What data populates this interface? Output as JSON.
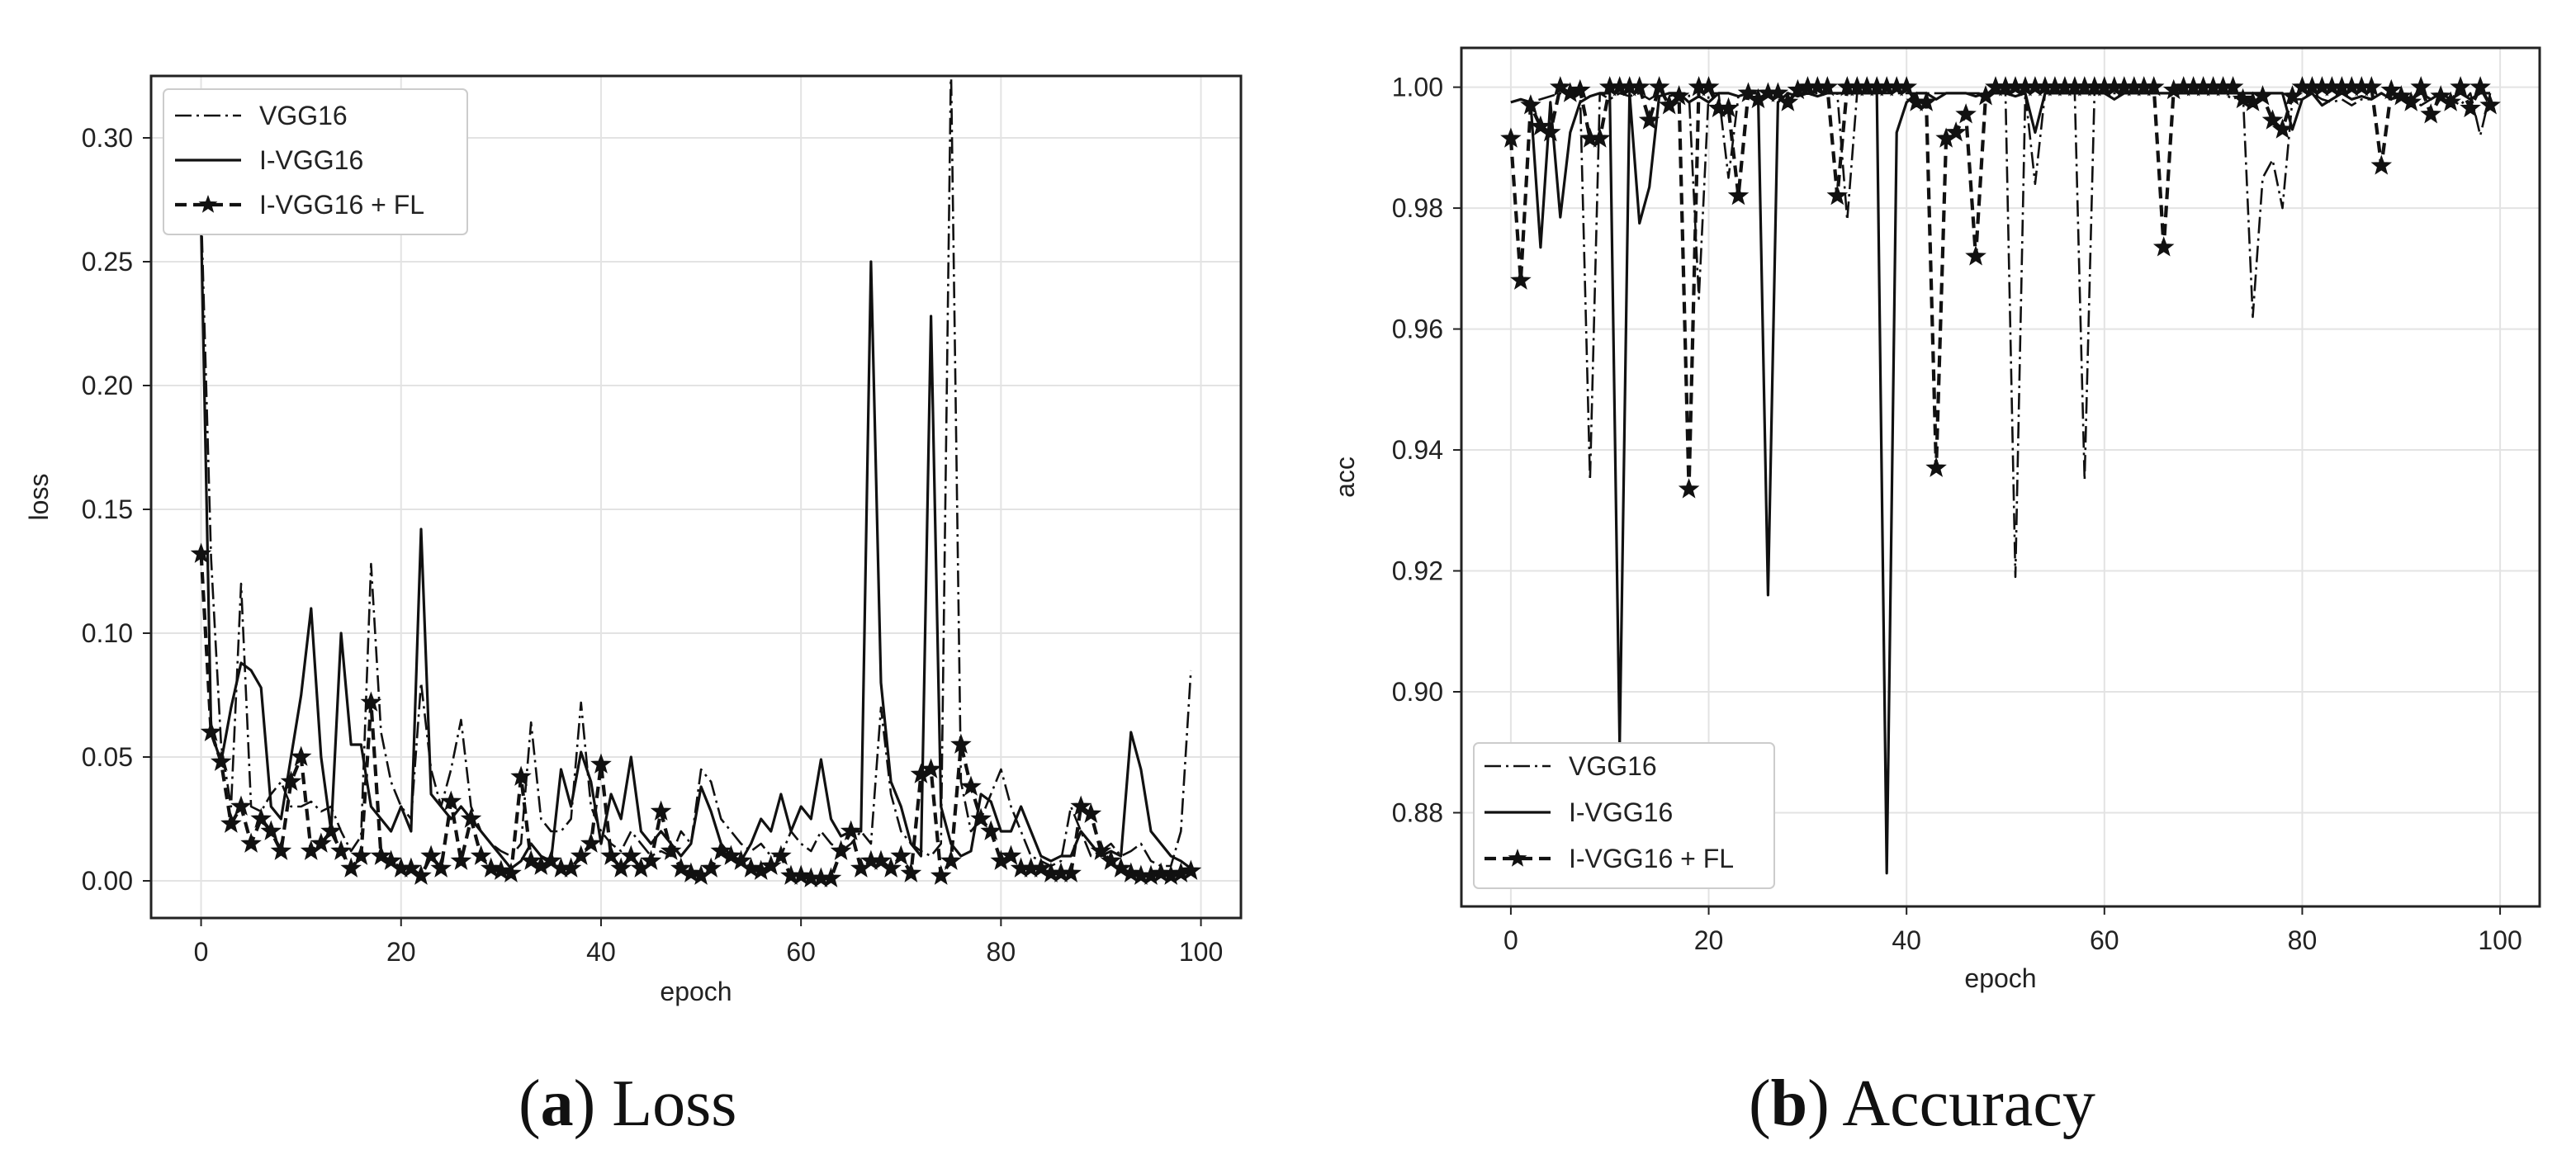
{
  "chart_data": [
    {
      "type": "line",
      "caption_letter": "a",
      "caption_text": "Loss",
      "xlabel": "epoch",
      "ylabel": "loss",
      "xlim": [
        -5,
        104
      ],
      "ylim": [
        -0.015,
        0.325
      ],
      "xticks": [
        0,
        20,
        40,
        60,
        80,
        100
      ],
      "yticks": [
        0.0,
        0.05,
        0.1,
        0.15,
        0.2,
        0.25,
        0.3
      ],
      "xtick_labels": [
        "0",
        "20",
        "40",
        "60",
        "80",
        "100"
      ],
      "ytick_labels": [
        "0.00",
        "0.05",
        "0.10",
        "0.15",
        "0.20",
        "0.25",
        "0.30"
      ],
      "grid": true,
      "legend_position": "top-left",
      "series": [
        {
          "name": "VGG16",
          "style": "dashdot",
          "values": [
            0.272,
            0.13,
            0.055,
            0.03,
            0.12,
            0.03,
            0.028,
            0.035,
            0.04,
            0.03,
            0.03,
            0.032,
            0.028,
            0.03,
            0.02,
            0.012,
            0.018,
            0.128,
            0.06,
            0.04,
            0.03,
            0.025,
            0.08,
            0.045,
            0.03,
            0.045,
            0.065,
            0.03,
            0.02,
            0.015,
            0.012,
            0.01,
            0.015,
            0.064,
            0.025,
            0.02,
            0.02,
            0.025,
            0.072,
            0.03,
            0.02,
            0.015,
            0.012,
            0.02,
            0.015,
            0.01,
            0.012,
            0.01,
            0.02,
            0.015,
            0.045,
            0.04,
            0.025,
            0.02,
            0.015,
            0.012,
            0.015,
            0.01,
            0.01,
            0.02,
            0.015,
            0.012,
            0.02,
            0.015,
            0.012,
            0.015,
            0.02,
            0.015,
            0.07,
            0.035,
            0.02,
            0.015,
            0.012,
            0.01,
            0.015,
            0.33,
            0.04,
            0.02,
            0.025,
            0.035,
            0.045,
            0.03,
            0.02,
            0.01,
            0.008,
            0.006,
            0.008,
            0.03,
            0.02,
            0.01,
            0.012,
            0.015,
            0.01,
            0.012,
            0.015,
            0.008,
            0.006,
            0.006,
            0.02,
            0.085
          ]
        },
        {
          "name": "I-VGG16",
          "style": "solid",
          "values": [
            0.265,
            0.06,
            0.048,
            0.07,
            0.088,
            0.085,
            0.078,
            0.03,
            0.025,
            0.05,
            0.075,
            0.11,
            0.05,
            0.02,
            0.1,
            0.055,
            0.055,
            0.03,
            0.025,
            0.02,
            0.03,
            0.02,
            0.142,
            0.035,
            0.03,
            0.025,
            0.03,
            0.025,
            0.02,
            0.015,
            0.01,
            0.005,
            0.008,
            0.015,
            0.01,
            0.008,
            0.045,
            0.03,
            0.052,
            0.04,
            0.015,
            0.035,
            0.025,
            0.05,
            0.02,
            0.015,
            0.02,
            0.015,
            0.01,
            0.015,
            0.038,
            0.028,
            0.015,
            0.01,
            0.008,
            0.015,
            0.025,
            0.02,
            0.035,
            0.02,
            0.03,
            0.025,
            0.049,
            0.025,
            0.018,
            0.02,
            0.02,
            0.25,
            0.08,
            0.04,
            0.03,
            0.015,
            0.01,
            0.228,
            0.03,
            0.015,
            0.01,
            0.012,
            0.035,
            0.032,
            0.02,
            0.02,
            0.03,
            0.02,
            0.01,
            0.008,
            0.01,
            0.01,
            0.02,
            0.015,
            0.01,
            0.012,
            0.01,
            0.06,
            0.045,
            0.02,
            0.015,
            0.01,
            0.008,
            0.005
          ]
        },
        {
          "name": "I-VGG16 + FL",
          "style": "dashed-star",
          "values": [
            0.132,
            0.06,
            0.048,
            0.023,
            0.03,
            0.015,
            0.025,
            0.02,
            0.012,
            0.04,
            0.05,
            0.012,
            0.015,
            0.02,
            0.012,
            0.005,
            0.01,
            0.072,
            0.01,
            0.008,
            0.005,
            0.005,
            0.002,
            0.01,
            0.005,
            0.032,
            0.008,
            0.025,
            0.01,
            0.005,
            0.004,
            0.003,
            0.042,
            0.008,
            0.006,
            0.008,
            0.005,
            0.005,
            0.01,
            0.015,
            0.047,
            0.01,
            0.005,
            0.01,
            0.005,
            0.008,
            0.028,
            0.012,
            0.005,
            0.003,
            0.002,
            0.005,
            0.012,
            0.01,
            0.008,
            0.005,
            0.004,
            0.006,
            0.01,
            0.002,
            0.002,
            0.001,
            0.001,
            0.001,
            0.012,
            0.02,
            0.005,
            0.008,
            0.008,
            0.005,
            0.01,
            0.003,
            0.043,
            0.045,
            0.002,
            0.008,
            0.055,
            0.038,
            0.025,
            0.02,
            0.008,
            0.01,
            0.005,
            0.005,
            0.005,
            0.003,
            0.003,
            0.003,
            0.03,
            0.027,
            0.012,
            0.008,
            0.005,
            0.003,
            0.002,
            0.002,
            0.003,
            0.002,
            0.003,
            0.004
          ]
        }
      ]
    },
    {
      "type": "line",
      "caption_letter": "b",
      "caption_text": "Accuracy",
      "xlabel": "epoch",
      "ylabel": "acc",
      "xlim": [
        -5,
        104
      ],
      "ylim": [
        0.8645,
        1.0065
      ],
      "xticks": [
        0,
        20,
        40,
        60,
        80,
        100
      ],
      "yticks": [
        0.88,
        0.9,
        0.92,
        0.94,
        0.96,
        0.98,
        1.0
      ],
      "xtick_labels": [
        "0",
        "20",
        "40",
        "60",
        "80",
        "100"
      ],
      "ytick_labels": [
        "0.88",
        "0.90",
        "0.92",
        "0.94",
        "0.96",
        "0.98",
        "1.00"
      ],
      "grid": true,
      "legend_position": "bottom-left",
      "series": [
        {
          "name": "VGG16",
          "style": "dashdot",
          "values": [
            0.9975,
            0.998,
            0.9975,
            0.998,
            0.9985,
            0.999,
            0.9985,
            0.999,
            0.935,
            0.999,
            0.998,
            0.999,
            0.9985,
            0.999,
            0.998,
            0.999,
            0.9985,
            0.999,
            0.999,
            0.965,
            0.999,
            0.999,
            0.985,
            0.9985,
            0.999,
            0.999,
            0.999,
            0.999,
            0.999,
            0.999,
            0.999,
            0.999,
            0.999,
            0.999,
            0.978,
            0.999,
            0.999,
            0.999,
            0.999,
            0.999,
            0.999,
            0.999,
            0.999,
            0.999,
            0.999,
            0.999,
            0.999,
            0.999,
            0.999,
            0.999,
            0.999,
            0.919,
            0.999,
            0.984,
            0.999,
            0.999,
            0.999,
            0.999,
            0.935,
            0.999,
            0.999,
            0.999,
            0.999,
            0.999,
            0.999,
            0.999,
            0.999,
            0.999,
            0.999,
            0.999,
            0.999,
            0.999,
            0.999,
            0.998,
            0.999,
            0.962,
            0.985,
            0.988,
            0.98,
            0.998,
            0.998,
            0.999,
            0.998,
            0.9975,
            0.998,
            0.997,
            0.998,
            0.998,
            0.999,
            0.998,
            0.9985,
            0.998,
            0.997,
            0.998,
            0.999,
            0.998,
            0.997,
            0.999,
            0.992,
            0.999
          ]
        },
        {
          "name": "I-VGG16",
          "style": "solid",
          "values": [
            0.9975,
            0.998,
            0.9975,
            0.9735,
            0.9975,
            0.9785,
            0.9925,
            0.9975,
            0.9985,
            0.999,
            0.999,
            0.891,
            0.999,
            0.9775,
            0.9835,
            0.9985,
            0.999,
            0.999,
            0.9975,
            0.9985,
            0.9975,
            0.999,
            0.999,
            0.9985,
            0.999,
            0.999,
            0.916,
            0.9975,
            0.999,
            0.9985,
            0.999,
            0.9985,
            0.999,
            0.999,
            0.999,
            0.999,
            0.999,
            0.999,
            0.87,
            0.9925,
            0.9975,
            0.999,
            0.999,
            0.998,
            0.999,
            0.999,
            0.999,
            0.9985,
            0.999,
            0.999,
            0.999,
            0.9985,
            0.999,
            0.9925,
            0.999,
            0.999,
            0.999,
            0.999,
            0.999,
            0.999,
            0.999,
            0.998,
            0.999,
            0.999,
            0.999,
            0.999,
            0.999,
            0.999,
            0.999,
            0.999,
            0.999,
            0.999,
            0.999,
            0.999,
            0.999,
            0.999,
            0.999,
            0.999,
            0.999,
            0.993,
            0.998,
            0.999,
            0.997,
            0.998,
            0.999,
            0.998,
            0.9985,
            0.998,
            0.999,
            0.998,
            0.999,
            0.998,
            0.999,
            0.998,
            0.999,
            0.998,
            0.999,
            0.998,
            0.999,
            0.999
          ]
        },
        {
          "name": "I-VGG16 + FL",
          "style": "dashed-star",
          "values": [
            0.9915,
            0.968,
            0.997,
            0.9935,
            0.9925,
            1.0,
            0.999,
            0.9995,
            0.9915,
            0.9915,
            1.0,
            1.0,
            1.0,
            1.0,
            0.9945,
            1.0,
            0.997,
            0.9985,
            0.9335,
            1.0,
            1.0,
            0.9965,
            0.9965,
            0.982,
            0.999,
            0.998,
            0.999,
            0.999,
            0.9975,
            0.9995,
            1.0,
            1.0,
            1.0,
            0.982,
            1.0,
            1.0,
            1.0,
            1.0,
            1.0,
            1.0,
            1.0,
            0.9975,
            0.9975,
            0.937,
            0.9915,
            0.9925,
            0.9955,
            0.972,
            0.9985,
            1.0,
            1.0,
            1.0,
            1.0,
            1.0,
            1.0,
            1.0,
            1.0,
            1.0,
            1.0,
            1.0,
            1.0,
            1.0,
            1.0,
            1.0,
            1.0,
            1.0,
            0.9735,
            0.9995,
            1.0,
            1.0,
            1.0,
            1.0,
            1.0,
            1.0,
            0.998,
            0.9975,
            0.9985,
            0.9945,
            0.993,
            0.9985,
            1.0,
            1.0,
            1.0,
            1.0,
            1.0,
            1.0,
            1.0,
            1.0,
            0.987,
            0.9995,
            0.9985,
            0.9975,
            1.0,
            0.9955,
            0.9985,
            0.9975,
            1.0,
            0.9965,
            1.0,
            0.997
          ]
        }
      ]
    }
  ]
}
